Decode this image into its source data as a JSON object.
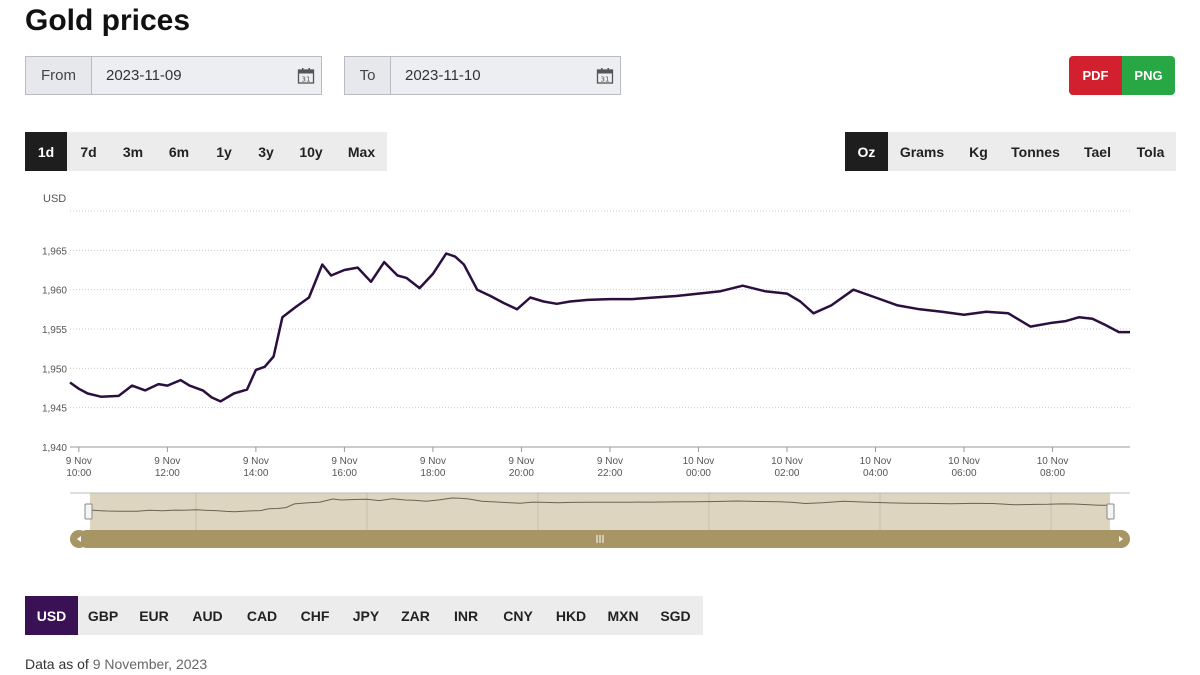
{
  "page": {
    "title": "Gold prices"
  },
  "date_range": {
    "from_label": "From",
    "from_value": "2023-11-09",
    "to_label": "To",
    "to_value": "2023-11-10"
  },
  "export": {
    "pdf_label": "PDF",
    "png_label": "PNG"
  },
  "range_buttons": [
    {
      "label": "1d",
      "active": true
    },
    {
      "label": "7d",
      "active": false
    },
    {
      "label": "3m",
      "active": false
    },
    {
      "label": "6m",
      "active": false
    },
    {
      "label": "1y",
      "active": false
    },
    {
      "label": "3y",
      "active": false
    },
    {
      "label": "10y",
      "active": false
    },
    {
      "label": "Max",
      "active": false
    }
  ],
  "unit_buttons": [
    {
      "label": "Oz",
      "active": true
    },
    {
      "label": "Grams",
      "active": false
    },
    {
      "label": "Kg",
      "active": false
    },
    {
      "label": "Tonnes",
      "active": false
    },
    {
      "label": "Tael",
      "active": false
    },
    {
      "label": "Tola",
      "active": false
    }
  ],
  "currency_buttons": [
    {
      "label": "USD",
      "active": true
    },
    {
      "label": "GBP",
      "active": false
    },
    {
      "label": "EUR",
      "active": false
    },
    {
      "label": "AUD",
      "active": false
    },
    {
      "label": "CAD",
      "active": false
    },
    {
      "label": "CHF",
      "active": false
    },
    {
      "label": "JPY",
      "active": false
    },
    {
      "label": "ZAR",
      "active": false
    },
    {
      "label": "INR",
      "active": false
    },
    {
      "label": "CNY",
      "active": false
    },
    {
      "label": "HKD",
      "active": false
    },
    {
      "label": "MXN",
      "active": false
    },
    {
      "label": "SGD",
      "active": false
    }
  ],
  "footer": {
    "prefix": "Data as of ",
    "date": "9 November, 2023"
  },
  "colors": {
    "line": "#2a0f3f",
    "navigator_fill": "#ddd5c0",
    "scrollbar": "#a89566",
    "active_currency": "#3b1155"
  },
  "chart_data": {
    "type": "line",
    "ylabel": "USD",
    "ylim": [
      1940,
      1970
    ],
    "y_ticks": [
      "1,940",
      "1,945",
      "1,950",
      "1,955",
      "1,960",
      "1,965"
    ],
    "y_tick_values": [
      1940,
      1945,
      1950,
      1955,
      1960,
      1965
    ],
    "xlim": [
      9.8,
      33.75
    ],
    "x_tick_values": [
      10,
      12,
      14,
      16,
      18,
      20,
      22,
      24,
      26,
      28,
      30,
      32
    ],
    "x_ticks": [
      [
        "9 Nov",
        "10:00"
      ],
      [
        "9 Nov",
        "12:00"
      ],
      [
        "9 Nov",
        "14:00"
      ],
      [
        "9 Nov",
        "16:00"
      ],
      [
        "9 Nov",
        "18:00"
      ],
      [
        "9 Nov",
        "20:00"
      ],
      [
        "9 Nov",
        "22:00"
      ],
      [
        "10 Nov",
        "00:00"
      ],
      [
        "10 Nov",
        "02:00"
      ],
      [
        "10 Nov",
        "04:00"
      ],
      [
        "10 Nov",
        "06:00"
      ],
      [
        "10 Nov",
        "08:00"
      ]
    ],
    "grid": true,
    "legend": "none",
    "series": [
      {
        "x": [
          9.8,
          10.0,
          10.2,
          10.5,
          10.9,
          11.2,
          11.5,
          11.8,
          12.0,
          12.3,
          12.5,
          12.8,
          13.0,
          13.2,
          13.5,
          13.8,
          14.0,
          14.2,
          14.4,
          14.6,
          14.9,
          15.2,
          15.5,
          15.7,
          16.0,
          16.3,
          16.6,
          16.9,
          17.2,
          17.4,
          17.7,
          18.0,
          18.3,
          18.5,
          18.7,
          19.0,
          19.3,
          19.6,
          19.9,
          20.2,
          20.5,
          20.8,
          21.1,
          21.5,
          22.0,
          22.5,
          23.0,
          23.5,
          24.0,
          24.5,
          25.0,
          25.5,
          26.0,
          26.3,
          26.6,
          27.0,
          27.5,
          28.0,
          28.5,
          29.0,
          29.5,
          30.0,
          30.5,
          31.0,
          31.5,
          32.0,
          32.3,
          32.6,
          32.9,
          33.2,
          33.5,
          33.75
        ],
        "values": [
          1948.2,
          1947.4,
          1946.8,
          1946.4,
          1946.5,
          1947.8,
          1947.2,
          1948.0,
          1947.8,
          1948.5,
          1947.8,
          1947.2,
          1946.3,
          1945.8,
          1946.8,
          1947.3,
          1949.8,
          1950.2,
          1951.5,
          1956.5,
          1957.8,
          1959.0,
          1963.2,
          1961.8,
          1962.5,
          1962.8,
          1961.0,
          1963.5,
          1961.8,
          1961.5,
          1960.2,
          1962.0,
          1964.6,
          1964.2,
          1963.2,
          1960.0,
          1959.2,
          1958.3,
          1957.5,
          1959.0,
          1958.5,
          1958.2,
          1958.5,
          1958.7,
          1958.8,
          1958.8,
          1959.0,
          1959.2,
          1959.5,
          1959.8,
          1960.5,
          1959.8,
          1959.5,
          1958.5,
          1957.0,
          1958.0,
          1960.0,
          1959.0,
          1958.0,
          1957.5,
          1957.2,
          1956.8,
          1957.2,
          1957.0,
          1955.3,
          1955.8,
          1956.0,
          1956.5,
          1956.3,
          1955.5,
          1954.6,
          1954.6
        ]
      }
    ]
  }
}
